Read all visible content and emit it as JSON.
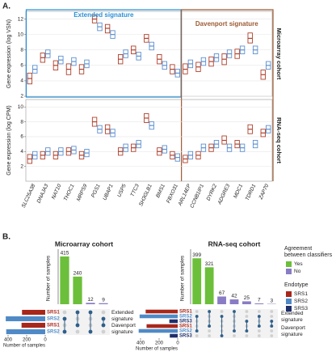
{
  "panel_labels": [
    "A.",
    "B."
  ],
  "chart_data": [
    {
      "type": "box",
      "strip_label": "Microarray cohort",
      "y_label": "Gene expression (log VSN)",
      "ylim": [
        2,
        13
      ],
      "yticks": [
        2,
        4,
        6,
        8,
        10,
        12
      ],
      "annotations": [
        {
          "text": "Extended signature",
          "color": "#2a8fd6",
          "span": [
            0,
            11
          ]
        },
        {
          "text": "Davenport signature",
          "color": "#9c5a32",
          "span": [
            12,
            18
          ]
        }
      ],
      "series": [
        {
          "color": "#b0402a",
          "values": [
            [
              3.6,
              4.3,
              5.0
            ],
            [
              6.4,
              7.0,
              7.6
            ],
            [
              5.4,
              6.0,
              6.6
            ],
            [
              4.8,
              5.5,
              6.2
            ],
            [
              4.9,
              5.5,
              6.1
            ],
            [
              11.5,
              12.0,
              12.5
            ],
            [
              10.2,
              10.8,
              11.3
            ],
            [
              6.2,
              6.8,
              7.4
            ],
            [
              7.5,
              8.0,
              8.5
            ],
            [
              9.0,
              9.5,
              10.0
            ],
            [
              6.2,
              6.8,
              7.4
            ],
            [
              4.9,
              5.5,
              6.1
            ],
            [
              4.9,
              5.5,
              6.2
            ],
            [
              5.2,
              5.8,
              6.4
            ],
            [
              5.9,
              6.5,
              7.1
            ],
            [
              6.1,
              6.8,
              7.5
            ],
            [
              6.9,
              7.5,
              8.1
            ],
            [
              8.9,
              9.5,
              10.2
            ],
            [
              4.2,
              4.8,
              5.4
            ]
          ]
        },
        {
          "color": "#5b8fd0",
          "values": [
            [
              5.0,
              5.5,
              6.0
            ],
            [
              7.0,
              7.5,
              8.0
            ],
            [
              6.2,
              6.7,
              7.2
            ],
            [
              6.0,
              6.5,
              7.0
            ],
            [
              5.7,
              6.2,
              6.7
            ],
            [
              10.5,
              11.0,
              11.5
            ],
            [
              9.5,
              10.0,
              10.5
            ],
            [
              7.0,
              7.5,
              8.0
            ],
            [
              6.7,
              7.2,
              7.7
            ],
            [
              8.0,
              8.5,
              9.0
            ],
            [
              5.5,
              6.0,
              6.5
            ],
            [
              4.5,
              5.0,
              5.5
            ],
            [
              5.7,
              6.2,
              6.7
            ],
            [
              6.0,
              6.5,
              7.0
            ],
            [
              6.5,
              7.0,
              7.5
            ],
            [
              7.0,
              7.5,
              8.0
            ],
            [
              7.5,
              8.0,
              8.5
            ],
            [
              7.5,
              8.0,
              8.5
            ],
            [
              5.5,
              6.0,
              6.5
            ]
          ]
        }
      ]
    },
    {
      "type": "box",
      "strip_label": "RNA-seq cohort",
      "y_label": "Gene expression (log CPM)",
      "ylim": [
        0,
        11
      ],
      "yticks": [
        2,
        4,
        6,
        8,
        10
      ],
      "categories": [
        "SLC25A38",
        "DNAJA3",
        "NAT10",
        "THOC1",
        "MRPS9",
        "PGS1",
        "UBAP1",
        "USP5",
        "TTC3",
        "SH3GLB1",
        "BMS1",
        "FBXO31",
        "ARL14EP",
        "CCNB1IP1",
        "DYRK2",
        "ADGRE3",
        "MDC1",
        "TDRD1",
        "ZAP70"
      ],
      "series": [
        {
          "color": "#b0402a",
          "values": [
            [
              2.4,
              3.0,
              3.6
            ],
            [
              3.0,
              3.5,
              4.0
            ],
            [
              3.0,
              3.5,
              4.0
            ],
            [
              3.5,
              4.0,
              4.5
            ],
            [
              3.0,
              3.5,
              4.0
            ],
            [
              7.4,
              8.0,
              8.6
            ],
            [
              6.4,
              7.0,
              7.6
            ],
            [
              3.5,
              4.0,
              4.5
            ],
            [
              4.0,
              4.5,
              5.0
            ],
            [
              7.9,
              8.5,
              9.1
            ],
            [
              3.5,
              4.0,
              4.5
            ],
            [
              3.0,
              3.5,
              4.0
            ],
            [
              2.5,
              3.0,
              3.5
            ],
            [
              3.0,
              3.5,
              4.0
            ],
            [
              4.0,
              4.5,
              5.0
            ],
            [
              5.0,
              5.5,
              6.1
            ],
            [
              4.5,
              5.0,
              5.5
            ],
            [
              6.4,
              7.0,
              7.6
            ],
            [
              6.0,
              6.5,
              7.0
            ]
          ]
        },
        {
          "color": "#5b8fd0",
          "values": [
            [
              3.0,
              3.5,
              4.0
            ],
            [
              3.5,
              4.0,
              4.5
            ],
            [
              3.5,
              4.0,
              4.5
            ],
            [
              3.7,
              4.2,
              4.7
            ],
            [
              3.3,
              3.8,
              4.3
            ],
            [
              6.5,
              7.0,
              7.5
            ],
            [
              6.0,
              6.5,
              7.0
            ],
            [
              4.0,
              4.5,
              5.0
            ],
            [
              4.5,
              5.0,
              5.5
            ],
            [
              7.0,
              7.5,
              8.0
            ],
            [
              3.8,
              4.3,
              4.8
            ],
            [
              2.7,
              3.2,
              3.7
            ],
            [
              3.0,
              3.5,
              4.0
            ],
            [
              4.0,
              4.5,
              5.0
            ],
            [
              4.5,
              5.0,
              5.5
            ],
            [
              4.0,
              4.5,
              5.0
            ],
            [
              4.0,
              4.5,
              5.0
            ],
            [
              4.5,
              5.0,
              5.5
            ],
            [
              6.5,
              7.0,
              7.5
            ]
          ]
        }
      ]
    },
    {
      "type": "upset",
      "title": "Microarray cohort",
      "y_label": "Number of samples",
      "x_label": "Number of samples",
      "ylim": [
        0,
        450
      ],
      "set_xlim": [
        0,
        400
      ],
      "set_xticks": [
        400,
        200,
        0
      ],
      "set_groups": [
        {
          "label": "Extended signature",
          "sets": [
            {
              "name": "SRS1",
              "size": 250,
              "color": "#a8271b"
            },
            {
              "name": "SRS2",
              "size": 425,
              "color": "#4f8ac6"
            }
          ]
        },
        {
          "label": "Davenport signature",
          "sets": [
            {
              "name": "SRS1",
              "size": 255,
              "color": "#a8271b"
            },
            {
              "name": "SRS2",
              "size": 420,
              "color": "#4f8ac6"
            }
          ]
        }
      ],
      "intersections": [
        {
          "value": 415,
          "sets": [
            1,
            3
          ],
          "color": "#6cbf3a"
        },
        {
          "value": 240,
          "sets": [
            0,
            2
          ],
          "color": "#6cbf3a"
        },
        {
          "value": 12,
          "sets": [
            0,
            3
          ],
          "color": "#8a7cc4"
        },
        {
          "value": 9,
          "sets": [
            1,
            2
          ],
          "color": "#8a7cc4"
        }
      ]
    },
    {
      "type": "upset",
      "title": "RNA-seq cohort",
      "y_label": "Number of samples",
      "x_label": "Number of samples",
      "ylim": [
        0,
        450
      ],
      "set_xlim": [
        0,
        400
      ],
      "set_xticks": [
        400,
        200,
        0
      ],
      "set_groups": [
        {
          "label": "Extended signature",
          "sets": [
            {
              "name": "SRS1",
              "size": 345,
              "color": "#a8271b"
            },
            {
              "name": "SRS2",
              "size": 410,
              "color": "#4f8ac6"
            },
            {
              "name": "SRS3",
              "size": 90,
              "color": "#1f2f6b"
            }
          ]
        },
        {
          "label": "Davenport signature",
          "sets": [
            {
              "name": "SRS1",
              "size": 335,
              "color": "#a8271b"
            },
            {
              "name": "SRS2",
              "size": 420,
              "color": "#4f8ac6"
            },
            {
              "name": "SRS3",
              "size": 85,
              "color": "#1f2f6b"
            }
          ]
        }
      ],
      "intersections": [
        {
          "value": 399,
          "sets": [
            1,
            4
          ],
          "color": "#6cbf3a"
        },
        {
          "value": 321,
          "sets": [
            0,
            3
          ],
          "color": "#6cbf3a"
        },
        {
          "value": 67,
          "sets": [
            1,
            5
          ],
          "color": "#8a7cc4"
        },
        {
          "value": 42,
          "sets": [
            0,
            4
          ],
          "color": "#8a7cc4"
        },
        {
          "value": 25,
          "sets": [
            2,
            4
          ],
          "color": "#8a7cc4"
        },
        {
          "value": 7,
          "sets": [
            1,
            3
          ],
          "color": "#8a7cc4"
        },
        {
          "value": 3,
          "sets": [
            2,
            3
          ],
          "color": "#8a7cc4"
        }
      ]
    }
  ],
  "legends": [
    {
      "title": "Agreement between classifiers",
      "items": [
        {
          "label": "Yes",
          "color": "#6cbf3a"
        },
        {
          "label": "No",
          "color": "#8a7cc4"
        }
      ]
    },
    {
      "title": "Endotype",
      "items": [
        {
          "label": "SRS1",
          "color": "#a8271b"
        },
        {
          "label": "SRS2",
          "color": "#4f8ac6"
        },
        {
          "label": "SRS3",
          "color": "#1f2f6b"
        }
      ]
    }
  ]
}
